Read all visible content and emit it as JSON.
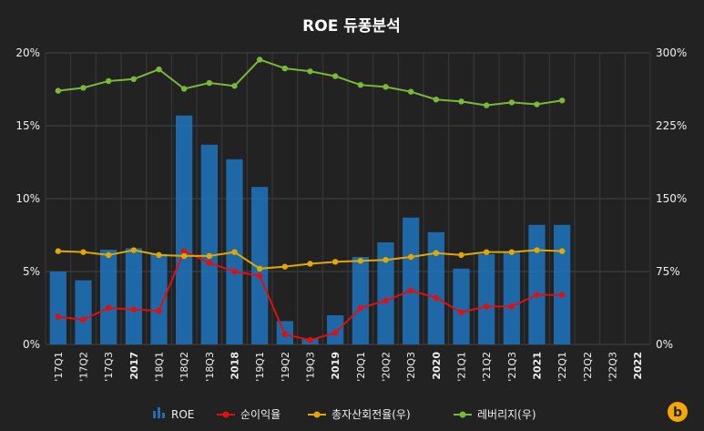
{
  "chart_data": {
    "type": "bar",
    "title": "ROE 듀퐁분석",
    "categories": [
      "'17Q1",
      "'17Q2",
      "'17Q3",
      "2017",
      "'18Q1",
      "'18Q2",
      "'18Q3",
      "2018",
      "'19Q1",
      "'19Q2",
      "'19Q3",
      "2019",
      "'20Q1",
      "'20Q2",
      "'20Q3",
      "2020",
      "'21Q1",
      "'21Q2",
      "'21Q3",
      "2021",
      "'22Q1",
      "'22Q2",
      "'22Q3",
      "2022"
    ],
    "bold_categories": [
      "2017",
      "2018",
      "2019",
      "2020",
      "2021",
      "2022"
    ],
    "left_axis": {
      "ticks": [
        "0%",
        "5%",
        "10%",
        "15%",
        "20%"
      ],
      "range": [
        0,
        20
      ]
    },
    "right_axis": {
      "ticks": [
        "0%",
        "75%",
        "150%",
        "225%",
        "300%"
      ],
      "range": [
        0,
        300
      ]
    },
    "grid": true,
    "legend_position": "bottom",
    "series": [
      {
        "name": "ROE",
        "kind": "bar",
        "axis": "left",
        "color": "#1f6fb4",
        "values": [
          5.0,
          4.4,
          6.5,
          6.6,
          6.2,
          15.7,
          13.7,
          12.7,
          10.8,
          1.6,
          0.4,
          2.0,
          6.0,
          7.0,
          8.7,
          7.7,
          5.2,
          6.2,
          6.3,
          8.2,
          8.2,
          null,
          null,
          null
        ]
      },
      {
        "name": "순이익율",
        "kind": "line",
        "axis": "left",
        "color": "#e01010",
        "values": [
          1.9,
          1.7,
          2.5,
          2.4,
          2.3,
          6.4,
          5.6,
          5.0,
          4.7,
          0.7,
          0.3,
          0.8,
          2.5,
          3.0,
          3.7,
          3.2,
          2.2,
          2.6,
          2.6,
          3.4,
          3.4,
          null,
          null,
          null
        ]
      },
      {
        "name": "총자산회전율(우)",
        "kind": "line",
        "axis": "right",
        "color": "#e0a800",
        "values": [
          96,
          95,
          92,
          97,
          92,
          91,
          91,
          95,
          78,
          80,
          83,
          85,
          86,
          87,
          90,
          94,
          92,
          95,
          95,
          97,
          96,
          null,
          null,
          null
        ]
      },
      {
        "name": "레버리지(우)",
        "kind": "line",
        "axis": "right",
        "color": "#7ab83a",
        "values": [
          261,
          264,
          271,
          273,
          283,
          263,
          269,
          266,
          293,
          284,
          281,
          276,
          267,
          265,
          260,
          252,
          250,
          246,
          249,
          247,
          251,
          null,
          null,
          null
        ]
      }
    ]
  },
  "logo_icon": "b-logo-icon"
}
